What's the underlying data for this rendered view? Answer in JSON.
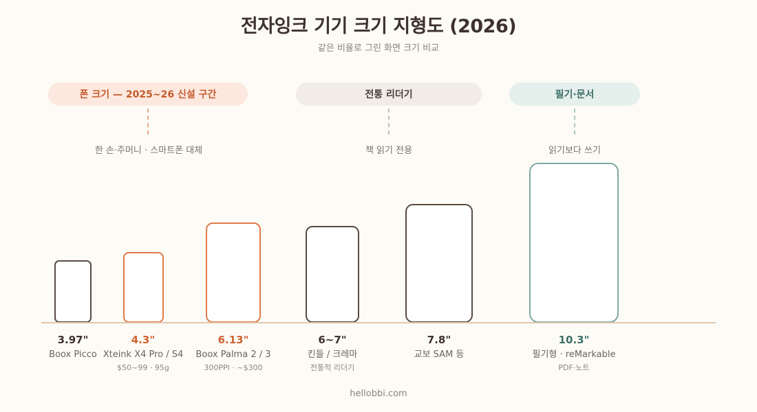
{
  "title": "전자잉크 기기 크기 지형도 (2026)",
  "subtitle": "같은 비율로 그린 화면 크기 비교",
  "groups": {
    "phone": {
      "label": "폰 크기 — 2025~26 신설 구간",
      "desc": "한 손·주머니 · 스마트폰 대체"
    },
    "reader": {
      "label": "전통 리더기",
      "desc": "책 읽기 전용"
    },
    "note": {
      "label": "필기·문서",
      "desc": "읽기보다 쓰기"
    }
  },
  "devices": [
    {
      "size": "3.97\"",
      "name": "Boox Picco",
      "note": ""
    },
    {
      "size": "4.3\"",
      "name": "Xteink X4 Pro / S4",
      "note": "$50~99 · 95g"
    },
    {
      "size": "6.13\"",
      "name": "Boox Palma 2 / 3",
      "note": "300PPI · ~$300"
    },
    {
      "size": "6~7\"",
      "name": "킨들 / 크레마",
      "note": "전통적 리더기"
    },
    {
      "size": "7.8\"",
      "name": "교보 SAM 등",
      "note": ""
    },
    {
      "size": "10.3\"",
      "name": "필기형 · reMarkable",
      "note": "PDF·노트"
    }
  ],
  "colors": {
    "dark": "#5a4a43",
    "orange": "#e07a4a",
    "teal": "#7fa8a3",
    "background": "#fdfbf6"
  },
  "footer": "hellobbi.com"
}
